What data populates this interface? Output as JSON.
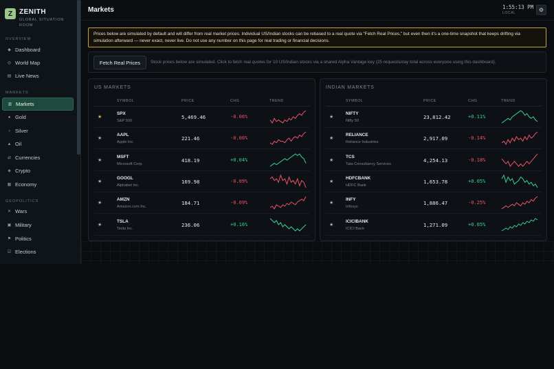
{
  "brand": {
    "logo": "Z",
    "name": "ZENITH",
    "subtitle": "GLOBAL SITUATION ROOM"
  },
  "sidebar": {
    "sections": [
      {
        "label": "OVERVIEW",
        "items": [
          {
            "label": "Dashboard",
            "icon": "diamond-icon",
            "glyph": "◆"
          },
          {
            "label": "World Map",
            "icon": "globe-icon",
            "glyph": "◎"
          },
          {
            "label": "Live News",
            "icon": "news-icon",
            "glyph": "▤"
          }
        ]
      },
      {
        "label": "MARKETS",
        "items": [
          {
            "label": "Markets",
            "icon": "chart-icon",
            "glyph": "▥",
            "active": true
          },
          {
            "label": "Gold",
            "icon": "dot-icon",
            "glyph": "●"
          },
          {
            "label": "Silver",
            "icon": "circle-icon",
            "glyph": "○"
          },
          {
            "label": "Oil",
            "icon": "triangle-icon",
            "glyph": "▲"
          },
          {
            "label": "Currencies",
            "icon": "exchange-icon",
            "glyph": "⇄"
          },
          {
            "label": "Crypto",
            "icon": "crypto-icon",
            "glyph": "◈"
          },
          {
            "label": "Economy",
            "icon": "bank-icon",
            "glyph": "▦"
          }
        ]
      },
      {
        "label": "GEOPOLITICS",
        "items": [
          {
            "label": "Wars",
            "icon": "swords-icon",
            "glyph": "✕"
          },
          {
            "label": "Military",
            "icon": "shield-icon",
            "glyph": "▣"
          },
          {
            "label": "Politics",
            "icon": "flag-icon",
            "glyph": "⚑"
          },
          {
            "label": "Elections",
            "icon": "ballot-icon",
            "glyph": "☑"
          }
        ]
      }
    ]
  },
  "header": {
    "title": "Markets",
    "time": "1:55:13 PM",
    "time_label": "LOCAL",
    "settings_icon": "gear-icon"
  },
  "warning": "Prices below are simulated by default and will differ from real market prices. Individual US/Indian stocks can be rebased to a real quote via \"Fetch Real Prices,\" but even then it's a one-time snapshot that keeps drifting via simulation afterward — never exact, never live. Do not use any number on this page for real trading or financial decisions.",
  "fetch": {
    "button": "Fetch Real Prices",
    "note": "Stock prices below are simulated. Click to fetch real quotes for 10 US/Indian stocks via a shared Alpha Vantage key (25 requests/day total across everyone using this dashboard)."
  },
  "columns": {
    "symbol": "SYMBOL",
    "price": "PRICE",
    "chg": "CHG",
    "trend": "TREND"
  },
  "panels": [
    {
      "key": "us",
      "title": "US MARKETS",
      "rows": [
        {
          "symbol": "SPX",
          "name": "S&P 500",
          "price": "5,469.46",
          "chg": "-0.06%",
          "dir": "neg",
          "fav": true,
          "trend": [
            6,
            4,
            7,
            5,
            6,
            5,
            4,
            6,
            5,
            7,
            6,
            8,
            7,
            9,
            10,
            9,
            11,
            12
          ]
        },
        {
          "symbol": "AAPL",
          "name": "Apple Inc.",
          "price": "221.46",
          "chg": "-0.06%",
          "dir": "neg",
          "fav": false,
          "trend": [
            5,
            4,
            6,
            5,
            7,
            6,
            6,
            5,
            7,
            8,
            6,
            8,
            9,
            8,
            10,
            9,
            11,
            12
          ]
        },
        {
          "symbol": "MSFT",
          "name": "Microsoft Corp.",
          "price": "418.19",
          "chg": "+0.04%",
          "dir": "pos",
          "fav": false,
          "trend": [
            3,
            4,
            5,
            4,
            5,
            6,
            7,
            8,
            7,
            8,
            9,
            10,
            11,
            10,
            11,
            9,
            8,
            5
          ]
        },
        {
          "symbol": "GOOGL",
          "name": "Alphabet Inc.",
          "price": "169.98",
          "chg": "-0.09%",
          "dir": "neg",
          "fav": false,
          "trend": [
            9,
            10,
            8,
            9,
            7,
            11,
            8,
            9,
            6,
            10,
            7,
            8,
            6,
            9,
            5,
            8,
            7,
            4
          ]
        },
        {
          "symbol": "AMZN",
          "name": "Amazon.com Inc.",
          "price": "184.71",
          "chg": "-0.09%",
          "dir": "neg",
          "fav": false,
          "trend": [
            4,
            5,
            3,
            6,
            5,
            4,
            6,
            5,
            7,
            6,
            8,
            7,
            6,
            8,
            9,
            10,
            9,
            12
          ]
        },
        {
          "symbol": "TSLA",
          "name": "Tesla Inc.",
          "price": "236.06",
          "chg": "+0.16%",
          "dir": "pos",
          "fav": false,
          "trend": [
            10,
            9,
            8,
            9,
            7,
            8,
            6,
            7,
            6,
            5,
            6,
            5,
            4,
            5,
            4,
            5,
            6,
            7
          ]
        }
      ]
    },
    {
      "key": "in",
      "title": "INDIAN MARKETS",
      "rows": [
        {
          "symbol": "NIFTY",
          "name": "Nifty 50",
          "price": "23,812.42",
          "chg": "+0.11%",
          "dir": "pos",
          "fav": false,
          "trend": [
            3,
            4,
            5,
            6,
            5,
            7,
            8,
            9,
            10,
            11,
            10,
            8,
            9,
            7,
            6,
            7,
            5,
            4
          ]
        },
        {
          "symbol": "RELIANCE",
          "name": "Reliance Industries",
          "price": "2,917.09",
          "chg": "-0.14%",
          "dir": "neg",
          "fav": false,
          "trend": [
            5,
            6,
            4,
            7,
            5,
            8,
            6,
            9,
            7,
            8,
            6,
            9,
            7,
            10,
            8,
            9,
            11,
            12
          ]
        },
        {
          "symbol": "TCS",
          "name": "Tata Consultancy Services",
          "price": "4,254.13",
          "chg": "-0.18%",
          "dir": "neg",
          "fav": false,
          "trend": [
            7,
            6,
            5,
            6,
            4,
            5,
            6,
            5,
            4,
            5,
            4,
            5,
            6,
            5,
            6,
            7,
            8,
            9
          ]
        },
        {
          "symbol": "HDFCBANK",
          "name": "HDFC Bank",
          "price": "1,653.78",
          "chg": "+0.05%",
          "dir": "pos",
          "fav": false,
          "trend": [
            8,
            10,
            6,
            9,
            7,
            8,
            5,
            6,
            7,
            9,
            8,
            6,
            7,
            5,
            6,
            4,
            5,
            3
          ]
        },
        {
          "symbol": "INFY",
          "name": "Infosys",
          "price": "1,886.47",
          "chg": "-0.25%",
          "dir": "neg",
          "fav": false,
          "trend": [
            4,
            5,
            6,
            5,
            6,
            7,
            6,
            8,
            7,
            6,
            8,
            7,
            9,
            8,
            10,
            9,
            11,
            12
          ]
        },
        {
          "symbol": "ICICIBANK",
          "name": "ICICI Bank",
          "price": "1,271.09",
          "chg": "+0.05%",
          "dir": "pos",
          "fav": false,
          "trend": [
            3,
            4,
            5,
            4,
            6,
            5,
            7,
            6,
            8,
            7,
            9,
            8,
            10,
            9,
            11,
            10,
            12,
            11
          ]
        }
      ]
    }
  ],
  "colors": {
    "accent": "#1e4a3e",
    "warning_border": "#c8a23a",
    "negative": "#f0526a",
    "positive": "#36d39a",
    "star_fav": "#e0b44a"
  }
}
